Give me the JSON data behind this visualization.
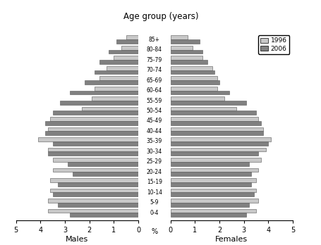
{
  "age_groups": [
    "0-4",
    "5-9",
    "10-14",
    "15-19",
    "20-24",
    "25-29",
    "30-34",
    "35-39",
    "40-44",
    "45-49",
    "50-54",
    "55-59",
    "60-64",
    "65-69",
    "70-74",
    "75-79",
    "80-84",
    "85+"
  ],
  "males_1996": [
    3.7,
    3.7,
    3.6,
    3.6,
    3.5,
    3.5,
    3.7,
    4.1,
    3.7,
    3.6,
    2.3,
    1.9,
    1.8,
    1.6,
    1.3,
    1.0,
    0.7,
    0.5
  ],
  "males_2006": [
    2.8,
    3.3,
    3.5,
    3.3,
    2.7,
    2.9,
    3.7,
    3.5,
    3.8,
    3.8,
    3.5,
    3.2,
    2.8,
    2.2,
    1.8,
    1.6,
    1.2,
    0.9
  ],
  "females_1996": [
    3.5,
    3.6,
    3.5,
    3.5,
    3.6,
    3.7,
    3.9,
    4.1,
    3.8,
    3.6,
    2.7,
    2.2,
    1.9,
    1.9,
    1.7,
    1.3,
    0.9,
    0.7
  ],
  "females_2006": [
    3.1,
    3.2,
    3.4,
    3.3,
    3.3,
    3.2,
    3.6,
    4.0,
    3.8,
    3.7,
    3.5,
    3.1,
    2.4,
    2.0,
    1.8,
    1.5,
    1.3,
    1.2
  ],
  "color_1996": "#c8c8c8",
  "color_2006": "#808080",
  "title": "Age group (years)",
  "xlabel_left": "Males",
  "xlabel_right": "Females",
  "xlabel_center": "%",
  "xlim": 5.0,
  "legend_1996": "1996",
  "legend_2006": "2006"
}
